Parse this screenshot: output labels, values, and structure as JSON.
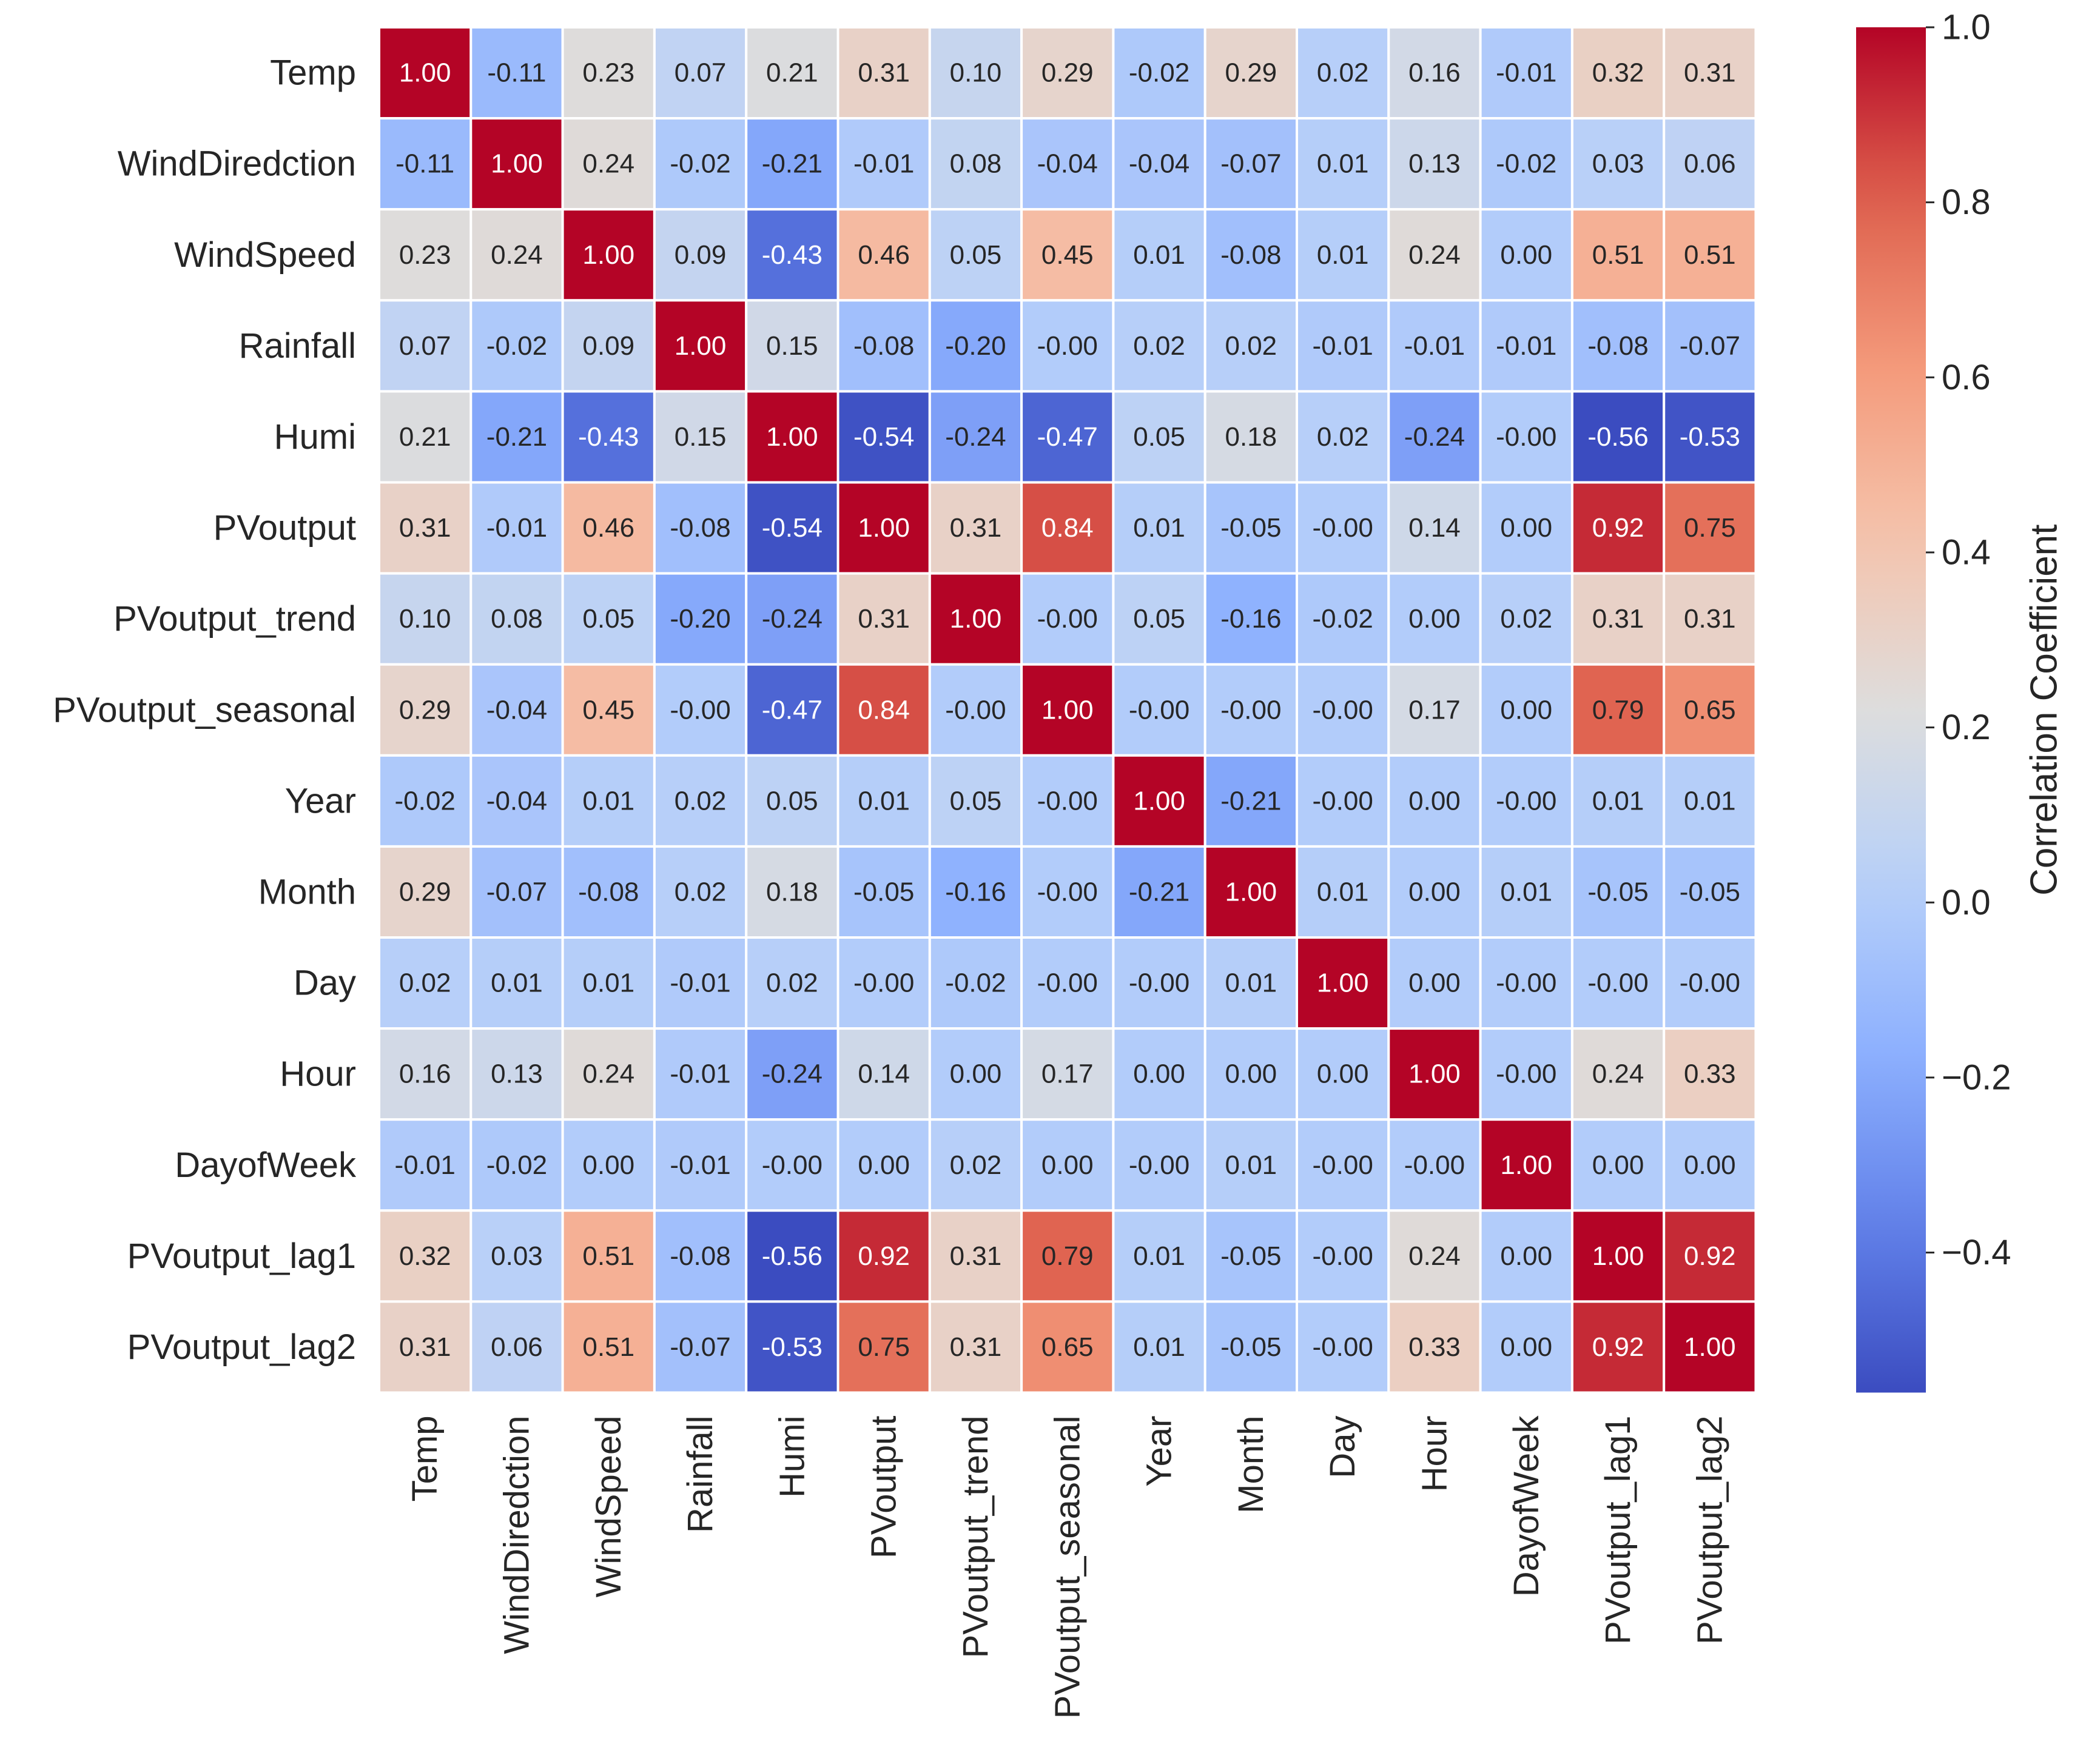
{
  "chart_data": {
    "type": "heatmap",
    "colormap": "coolwarm",
    "variables": [
      "Temp",
      "WindDiredction",
      "WindSpeed",
      "Rainfall",
      "Humi",
      "PVoutput",
      "PVoutput_trend",
      "PVoutput_seasonal",
      "Year",
      "Month",
      "Day",
      "Hour",
      "DayofWeek",
      "PVoutput_lag1",
      "PVoutput_lag2"
    ],
    "matrix": [
      [
        1.0,
        -0.11,
        0.23,
        0.07,
        0.21,
        0.31,
        0.1,
        0.29,
        -0.02,
        0.29,
        0.02,
        0.16,
        -0.01,
        0.32,
        0.31
      ],
      [
        -0.11,
        1.0,
        0.24,
        -0.02,
        -0.21,
        -0.01,
        0.08,
        -0.04,
        -0.04,
        -0.07,
        0.01,
        0.13,
        -0.02,
        0.03,
        0.06
      ],
      [
        0.23,
        0.24,
        1.0,
        0.09,
        -0.43,
        0.46,
        0.05,
        0.45,
        0.01,
        -0.08,
        0.01,
        0.24,
        0.0,
        0.51,
        0.51
      ],
      [
        0.07,
        -0.02,
        0.09,
        1.0,
        0.15,
        -0.08,
        -0.2,
        -0.0,
        0.02,
        0.02,
        -0.01,
        -0.01,
        -0.01,
        -0.08,
        -0.07
      ],
      [
        0.21,
        -0.21,
        -0.43,
        0.15,
        1.0,
        -0.54,
        -0.24,
        -0.47,
        0.05,
        0.18,
        0.02,
        -0.24,
        -0.0,
        -0.56,
        -0.53
      ],
      [
        0.31,
        -0.01,
        0.46,
        -0.08,
        -0.54,
        1.0,
        0.31,
        0.84,
        0.01,
        -0.05,
        -0.0,
        0.14,
        0.0,
        0.92,
        0.75
      ],
      [
        0.1,
        0.08,
        0.05,
        -0.2,
        -0.24,
        0.31,
        1.0,
        -0.0,
        0.05,
        -0.16,
        -0.02,
        0.0,
        0.02,
        0.31,
        0.31
      ],
      [
        0.29,
        -0.04,
        0.45,
        -0.0,
        -0.47,
        0.84,
        -0.0,
        1.0,
        -0.0,
        -0.0,
        -0.0,
        0.17,
        0.0,
        0.79,
        0.65
      ],
      [
        -0.02,
        -0.04,
        0.01,
        0.02,
        0.05,
        0.01,
        0.05,
        -0.0,
        1.0,
        -0.21,
        -0.0,
        0.0,
        -0.0,
        0.01,
        0.01
      ],
      [
        0.29,
        -0.07,
        -0.08,
        0.02,
        0.18,
        -0.05,
        -0.16,
        -0.0,
        -0.21,
        1.0,
        0.01,
        0.0,
        0.01,
        -0.05,
        -0.05
      ],
      [
        0.02,
        0.01,
        0.01,
        -0.01,
        0.02,
        -0.0,
        -0.02,
        -0.0,
        -0.0,
        0.01,
        1.0,
        0.0,
        -0.0,
        -0.0,
        -0.0
      ],
      [
        0.16,
        0.13,
        0.24,
        -0.01,
        -0.24,
        0.14,
        0.0,
        0.17,
        0.0,
        0.0,
        0.0,
        1.0,
        -0.0,
        0.24,
        0.33
      ],
      [
        -0.01,
        -0.02,
        0.0,
        -0.01,
        -0.0,
        0.0,
        0.02,
        0.0,
        -0.0,
        0.01,
        -0.0,
        -0.0,
        1.0,
        0.0,
        0.0
      ],
      [
        0.32,
        0.03,
        0.51,
        -0.08,
        -0.56,
        0.92,
        0.31,
        0.79,
        0.01,
        -0.05,
        -0.0,
        0.24,
        0.0,
        1.0,
        0.92
      ],
      [
        0.31,
        0.06,
        0.51,
        -0.07,
        -0.53,
        0.75,
        0.31,
        0.65,
        0.01,
        -0.05,
        -0.0,
        0.33,
        0.0,
        0.92,
        1.0
      ]
    ],
    "labels": [
      [
        "1.00",
        "-0.11",
        "0.23",
        "0.07",
        "0.21",
        "0.31",
        "0.10",
        "0.29",
        "-0.02",
        "0.29",
        "0.02",
        "0.16",
        "-0.01",
        "0.32",
        "0.31"
      ],
      [
        "-0.11",
        "1.00",
        "0.24",
        "-0.02",
        "-0.21",
        "-0.01",
        "0.08",
        "-0.04",
        "-0.04",
        "-0.07",
        "0.01",
        "0.13",
        "-0.02",
        "0.03",
        "0.06"
      ],
      [
        "0.23",
        "0.24",
        "1.00",
        "0.09",
        "-0.43",
        "0.46",
        "0.05",
        "0.45",
        "0.01",
        "-0.08",
        "0.01",
        "0.24",
        "0.00",
        "0.51",
        "0.51"
      ],
      [
        "0.07",
        "-0.02",
        "0.09",
        "1.00",
        "0.15",
        "-0.08",
        "-0.20",
        "-0.00",
        "0.02",
        "0.02",
        "-0.01",
        "-0.01",
        "-0.01",
        "-0.08",
        "-0.07"
      ],
      [
        "0.21",
        "-0.21",
        "-0.43",
        "0.15",
        "1.00",
        "-0.54",
        "-0.24",
        "-0.47",
        "0.05",
        "0.18",
        "0.02",
        "-0.24",
        "-0.00",
        "-0.56",
        "-0.53"
      ],
      [
        "0.31",
        "-0.01",
        "0.46",
        "-0.08",
        "-0.54",
        "1.00",
        "0.31",
        "0.84",
        "0.01",
        "-0.05",
        "-0.00",
        "0.14",
        "0.00",
        "0.92",
        "0.75"
      ],
      [
        "0.10",
        "0.08",
        "0.05",
        "-0.20",
        "-0.24",
        "0.31",
        "1.00",
        "-0.00",
        "0.05",
        "-0.16",
        "-0.02",
        "0.00",
        "0.02",
        "0.31",
        "0.31"
      ],
      [
        "0.29",
        "-0.04",
        "0.45",
        "-0.00",
        "-0.47",
        "0.84",
        "-0.00",
        "1.00",
        "-0.00",
        "-0.00",
        "-0.00",
        "0.17",
        "0.00",
        "0.79",
        "0.65"
      ],
      [
        "-0.02",
        "-0.04",
        "0.01",
        "0.02",
        "0.05",
        "0.01",
        "0.05",
        "-0.00",
        "1.00",
        "-0.21",
        "-0.00",
        "0.00",
        "-0.00",
        "0.01",
        "0.01"
      ],
      [
        "0.29",
        "-0.07",
        "-0.08",
        "0.02",
        "0.18",
        "-0.05",
        "-0.16",
        "-0.00",
        "-0.21",
        "1.00",
        "0.01",
        "0.00",
        "0.01",
        "-0.05",
        "-0.05"
      ],
      [
        "0.02",
        "0.01",
        "0.01",
        "-0.01",
        "0.02",
        "-0.00",
        "-0.02",
        "-0.00",
        "-0.00",
        "0.01",
        "1.00",
        "0.00",
        "-0.00",
        "-0.00",
        "-0.00"
      ],
      [
        "0.16",
        "0.13",
        "0.24",
        "-0.01",
        "-0.24",
        "0.14",
        "0.00",
        "0.17",
        "0.00",
        "0.00",
        "0.00",
        "1.00",
        "-0.00",
        "0.24",
        "0.33"
      ],
      [
        "-0.01",
        "-0.02",
        "0.00",
        "-0.01",
        "-0.00",
        "0.00",
        "0.02",
        "0.00",
        "-0.00",
        "0.01",
        "-0.00",
        "-0.00",
        "1.00",
        "0.00",
        "0.00"
      ],
      [
        "0.32",
        "0.03",
        "0.51",
        "-0.08",
        "-0.56",
        "0.92",
        "0.31",
        "0.79",
        "0.01",
        "-0.05",
        "-0.00",
        "0.24",
        "0.00",
        "1.00",
        "0.92"
      ],
      [
        "0.31",
        "0.06",
        "0.51",
        "-0.07",
        "-0.53",
        "0.75",
        "0.31",
        "0.65",
        "0.01",
        "-0.05",
        "-0.00",
        "0.33",
        "0.00",
        "0.92",
        "1.00"
      ]
    ],
    "colorbar": {
      "label": "Correlation Coefficient",
      "vmin": -0.56,
      "vmax": 1.0,
      "ticks": [
        1.0,
        0.8,
        0.6,
        0.4,
        0.2,
        0.0,
        -0.2,
        -0.4
      ],
      "tick_labels": [
        "1.0",
        "0.8",
        "0.6",
        "0.4",
        "0.2",
        "0.0",
        "−0.2",
        "−0.4"
      ]
    },
    "colors": {
      "low": "#3b4cc0",
      "mid": "#dddddd",
      "high": "#b40426",
      "cell_border": "#ffffff"
    }
  }
}
